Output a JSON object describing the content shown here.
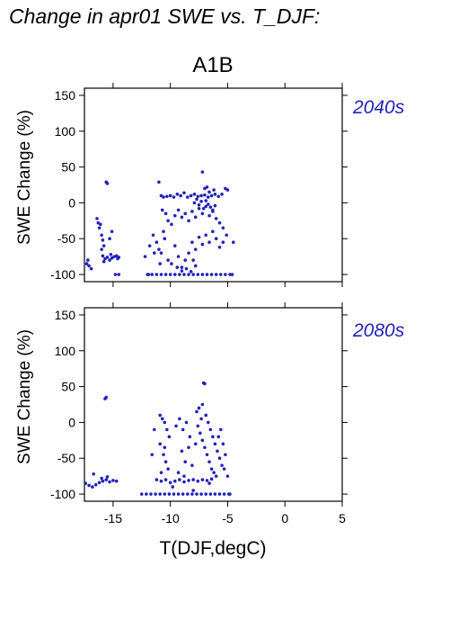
{
  "figure_title": "Change in apr01 SWE vs. T_DJF:",
  "scenario_label": "A1B",
  "x_axis_label": "T(DJF,degC)",
  "chart_data": [
    {
      "type": "scatter",
      "panel_label": "2040s",
      "ylabel": "SWE Change (%)",
      "xlabel": "T(DJF,degC)",
      "xlim": [
        -17.5,
        5
      ],
      "ylim": [
        -110,
        160
      ],
      "x_ticks": [
        -15,
        -10,
        -5,
        0,
        5
      ],
      "y_ticks": [
        -100,
        -50,
        0,
        50,
        100,
        150
      ],
      "point_color": "#2222bb",
      "grid": false,
      "points": [
        [
          -17.3,
          -85
        ],
        [
          -17.1,
          -88
        ],
        [
          -16.9,
          -92
        ],
        [
          -17.2,
          -80
        ],
        [
          -16.4,
          -22
        ],
        [
          -16.3,
          -28
        ],
        [
          -16.2,
          -35
        ],
        [
          -16.1,
          -30
        ],
        [
          -16.0,
          -45
        ],
        [
          -15.9,
          -52
        ],
        [
          -15.8,
          -60
        ],
        [
          -16.0,
          -65
        ],
        [
          -15.6,
          29
        ],
        [
          -15.5,
          27
        ],
        [
          -15.9,
          -74
        ],
        [
          -15.7,
          -78
        ],
        [
          -15.5,
          -76
        ],
        [
          -15.3,
          -80
        ],
        [
          -15.1,
          -77
        ],
        [
          -14.9,
          -75
        ],
        [
          -14.7,
          -74
        ],
        [
          -14.5,
          -76
        ],
        [
          -15.8,
          -82
        ],
        [
          -15.2,
          -72
        ],
        [
          -14.6,
          -78
        ],
        [
          -15.3,
          -50
        ],
        [
          -15.1,
          -40
        ],
        [
          -14.8,
          -100
        ],
        [
          -14.5,
          -100
        ],
        [
          -12.0,
          -100
        ],
        [
          -11.6,
          -100
        ],
        [
          -11.2,
          -100
        ],
        [
          -10.8,
          -100
        ],
        [
          -10.4,
          -100
        ],
        [
          -10.0,
          -100
        ],
        [
          -9.6,
          -100
        ],
        [
          -9.2,
          -100
        ],
        [
          -8.8,
          -100
        ],
        [
          -8.4,
          -100
        ],
        [
          -8.0,
          -100
        ],
        [
          -7.6,
          -100
        ],
        [
          -7.2,
          -100
        ],
        [
          -6.8,
          -100
        ],
        [
          -6.4,
          -100
        ],
        [
          -6.0,
          -100
        ],
        [
          -5.6,
          -100
        ],
        [
          -5.2,
          -100
        ],
        [
          -4.8,
          -100
        ],
        [
          -11.0,
          29
        ],
        [
          -10.8,
          10
        ],
        [
          -10.6,
          8
        ],
        [
          -10.3,
          9
        ],
        [
          -10.0,
          10
        ],
        [
          -9.7,
          8
        ],
        [
          -9.4,
          12
        ],
        [
          -9.1,
          10
        ],
        [
          -8.8,
          14
        ],
        [
          -8.5,
          8
        ],
        [
          -8.2,
          10
        ],
        [
          -7.9,
          12
        ],
        [
          -7.6,
          9
        ],
        [
          -7.3,
          10
        ],
        [
          -7.0,
          11
        ],
        [
          -6.7,
          8
        ],
        [
          -6.4,
          10
        ],
        [
          -6.1,
          12
        ],
        [
          -5.8,
          9
        ],
        [
          -5.5,
          12
        ],
        [
          -5.2,
          20
        ],
        [
          -5.0,
          18
        ],
        [
          -10.7,
          -10
        ],
        [
          -10.4,
          -15
        ],
        [
          -10.2,
          -25
        ],
        [
          -9.9,
          -30
        ],
        [
          -9.6,
          -18
        ],
        [
          -9.3,
          -10
        ],
        [
          -9.0,
          -20
        ],
        [
          -8.7,
          -15
        ],
        [
          -8.4,
          -25
        ],
        [
          -8.1,
          -12
        ],
        [
          -7.8,
          -20
        ],
        [
          -7.5,
          -8
        ],
        [
          -7.2,
          -15
        ],
        [
          -6.9,
          -5
        ],
        [
          -6.6,
          -18
        ],
        [
          -6.3,
          -10
        ],
        [
          -6.0,
          -22
        ],
        [
          -5.7,
          -28
        ],
        [
          -5.4,
          -35
        ],
        [
          -7.9,
          0
        ],
        [
          -7.7,
          5
        ],
        [
          -7.5,
          -3
        ],
        [
          -7.3,
          2
        ],
        [
          -7.1,
          -8
        ],
        [
          -6.9,
          3
        ],
        [
          -6.7,
          -2
        ],
        [
          -6.5,
          -6
        ],
        [
          -6.3,
          -12
        ],
        [
          -6.1,
          -4
        ],
        [
          -7.0,
          20
        ],
        [
          -6.8,
          22
        ],
        [
          -7.2,
          43
        ],
        [
          -6.6,
          15
        ],
        [
          -6.2,
          18
        ],
        [
          -11.5,
          -45
        ],
        [
          -11.2,
          -55
        ],
        [
          -11.0,
          -65
        ],
        [
          -10.8,
          -70
        ],
        [
          -10.5,
          -50
        ],
        [
          -10.2,
          -80
        ],
        [
          -9.9,
          -85
        ],
        [
          -9.6,
          -60
        ],
        [
          -9.3,
          -75
        ],
        [
          -9.0,
          -90
        ],
        [
          -8.7,
          -80
        ],
        [
          -8.4,
          -70
        ],
        [
          -8.1,
          -55
        ],
        [
          -7.8,
          -65
        ],
        [
          -7.5,
          -48
        ],
        [
          -7.2,
          -58
        ],
        [
          -6.9,
          -45
        ],
        [
          -6.6,
          -55
        ],
        [
          -6.3,
          -40
        ],
        [
          -6.0,
          -50
        ],
        [
          -5.7,
          -62
        ],
        [
          -5.4,
          -55
        ],
        [
          -5.1,
          -45
        ],
        [
          -9.0,
          -95
        ],
        [
          -8.6,
          -92
        ],
        [
          -8.2,
          -96
        ],
        [
          -7.8,
          -88
        ],
        [
          -9.4,
          -90
        ],
        [
          -8.0,
          -80
        ],
        [
          -11.8,
          -60
        ],
        [
          -11.4,
          -70
        ],
        [
          -10.9,
          -85
        ],
        [
          -10.6,
          -40
        ],
        [
          -12.2,
          -75
        ],
        [
          -11.9,
          -100
        ],
        [
          -4.6,
          -100
        ],
        [
          -4.5,
          -55
        ]
      ]
    },
    {
      "type": "scatter",
      "panel_label": "2080s",
      "ylabel": "SWE Change (%)",
      "xlabel": "T(DJF,degC)",
      "xlim": [
        -17.5,
        5
      ],
      "ylim": [
        -110,
        160
      ],
      "x_ticks": [
        -15,
        -10,
        -5,
        0,
        5
      ],
      "y_ticks": [
        -100,
        -50,
        0,
        50,
        100,
        150
      ],
      "point_color": "#2222bb",
      "grid": false,
      "points": [
        [
          -17.4,
          -85
        ],
        [
          -17.1,
          -88
        ],
        [
          -16.8,
          -90
        ],
        [
          -16.5,
          -87
        ],
        [
          -16.2,
          -84
        ],
        [
          -15.9,
          -82
        ],
        [
          -15.6,
          -80
        ],
        [
          -15.3,
          -83
        ],
        [
          -15.0,
          -81
        ],
        [
          -14.7,
          -82
        ],
        [
          -16.7,
          -72
        ],
        [
          -16.0,
          -78
        ],
        [
          -15.5,
          -76
        ],
        [
          -15.7,
          33
        ],
        [
          -15.6,
          35
        ],
        [
          -12.5,
          -100
        ],
        [
          -12.1,
          -100
        ],
        [
          -11.7,
          -100
        ],
        [
          -11.3,
          -100
        ],
        [
          -10.9,
          -100
        ],
        [
          -10.5,
          -100
        ],
        [
          -10.1,
          -100
        ],
        [
          -9.7,
          -100
        ],
        [
          -9.3,
          -100
        ],
        [
          -8.9,
          -100
        ],
        [
          -8.5,
          -100
        ],
        [
          -8.1,
          -100
        ],
        [
          -7.7,
          -100
        ],
        [
          -7.3,
          -100
        ],
        [
          -6.9,
          -100
        ],
        [
          -6.5,
          -100
        ],
        [
          -6.1,
          -100
        ],
        [
          -5.7,
          -100
        ],
        [
          -5.3,
          -100
        ],
        [
          -4.9,
          -100
        ],
        [
          -11.2,
          -80
        ],
        [
          -10.8,
          -82
        ],
        [
          -10.4,
          -80
        ],
        [
          -10.0,
          -84
        ],
        [
          -9.6,
          -82
        ],
        [
          -9.2,
          -80
        ],
        [
          -8.8,
          -83
        ],
        [
          -8.4,
          -81
        ],
        [
          -8.0,
          -80
        ],
        [
          -7.6,
          -82
        ],
        [
          -7.2,
          -80
        ],
        [
          -6.8,
          -81
        ],
        [
          -6.4,
          -79
        ],
        [
          -10.9,
          10
        ],
        [
          -10.7,
          5
        ],
        [
          -10.5,
          0
        ],
        [
          -10.3,
          -10
        ],
        [
          -10.1,
          -20
        ],
        [
          -10.9,
          -30
        ],
        [
          -10.6,
          -45
        ],
        [
          -10.4,
          -55
        ],
        [
          -10.2,
          -65
        ],
        [
          -10.8,
          -70
        ],
        [
          -10.5,
          -35
        ],
        [
          -9.5,
          -5
        ],
        [
          -9.2,
          5
        ],
        [
          -8.9,
          -10
        ],
        [
          -8.6,
          0
        ],
        [
          -8.3,
          -20
        ],
        [
          -9.0,
          -40
        ],
        [
          -8.7,
          -55
        ],
        [
          -8.4,
          -35
        ],
        [
          -8.1,
          -60
        ],
        [
          -9.3,
          -70
        ],
        [
          -8.8,
          -75
        ],
        [
          -7.7,
          15
        ],
        [
          -7.5,
          20
        ],
        [
          -7.3,
          5
        ],
        [
          -7.1,
          55
        ],
        [
          -7.0,
          54
        ],
        [
          -7.2,
          25
        ],
        [
          -6.9,
          10
        ],
        [
          -6.7,
          0
        ],
        [
          -6.5,
          -10
        ],
        [
          -6.3,
          -20
        ],
        [
          -6.1,
          -30
        ],
        [
          -5.9,
          -40
        ],
        [
          -5.7,
          -50
        ],
        [
          -5.5,
          -60
        ],
        [
          -5.3,
          -65
        ],
        [
          -7.6,
          -5
        ],
        [
          -7.4,
          -15
        ],
        [
          -7.2,
          -25
        ],
        [
          -7.0,
          -35
        ],
        [
          -6.8,
          -45
        ],
        [
          -6.6,
          -55
        ],
        [
          -6.4,
          -65
        ],
        [
          -6.2,
          -70
        ],
        [
          -6.0,
          -75
        ],
        [
          -5.8,
          -20
        ],
        [
          -5.6,
          -10
        ],
        [
          -5.4,
          -30
        ],
        [
          -5.2,
          -45
        ],
        [
          -5.0,
          -75
        ],
        [
          -4.8,
          -100
        ],
        [
          -11.6,
          -45
        ],
        [
          -11.4,
          -10
        ],
        [
          -9.8,
          -90
        ],
        [
          -8.0,
          -95
        ],
        [
          -7.8,
          -30
        ],
        [
          -6.6,
          -85
        ]
      ]
    }
  ]
}
